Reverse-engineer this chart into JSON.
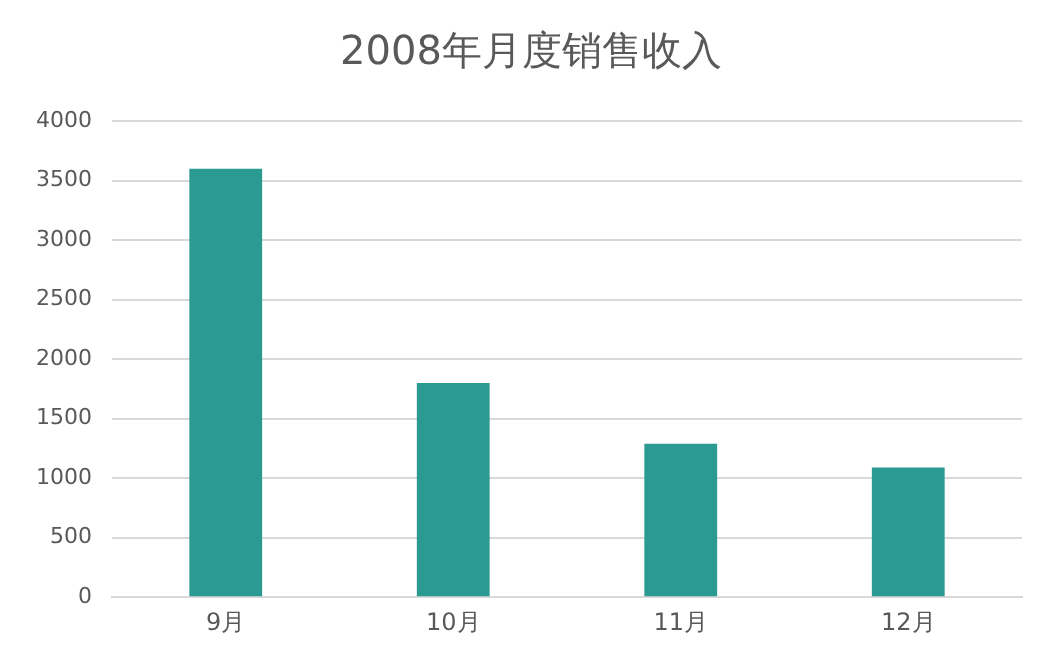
{
  "chart_data": {
    "type": "bar",
    "title": "2008年月度销售收入",
    "categories": [
      "9月",
      "10月",
      "11月",
      "12月"
    ],
    "values": [
      3600,
      1800,
      1290,
      1090
    ],
    "color": "#2a9a93",
    "ylim": [
      0,
      4000
    ],
    "yticks": [
      0,
      500,
      1000,
      1500,
      2000,
      2500,
      3000,
      3500,
      4000
    ],
    "grid": "y"
  }
}
